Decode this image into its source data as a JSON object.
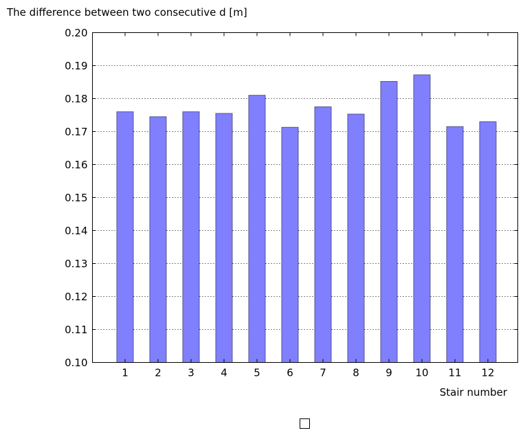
{
  "chart_data": {
    "type": "bar",
    "ylabel": "The difference between two consecutive d [m]",
    "xlabel": "Stair number",
    "categories": [
      "1",
      "2",
      "3",
      "4",
      "5",
      "6",
      "7",
      "8",
      "9",
      "10",
      "11",
      "12"
    ],
    "values": [
      0.176,
      0.1745,
      0.176,
      0.1755,
      0.181,
      0.1713,
      0.1775,
      0.1753,
      0.1852,
      0.1872,
      0.1715,
      0.173
    ],
    "ylim": [
      0.1,
      0.2
    ],
    "yticks": [
      "0.10",
      "0.11",
      "0.12",
      "0.13",
      "0.14",
      "0.15",
      "0.16",
      "0.17",
      "0.18",
      "0.19",
      "0.20"
    ],
    "grid": "horizontal dotted",
    "bar_color": "#8080ff",
    "bar_edge_color": "#55558a"
  },
  "legend_checkbox": {
    "checked": false
  }
}
